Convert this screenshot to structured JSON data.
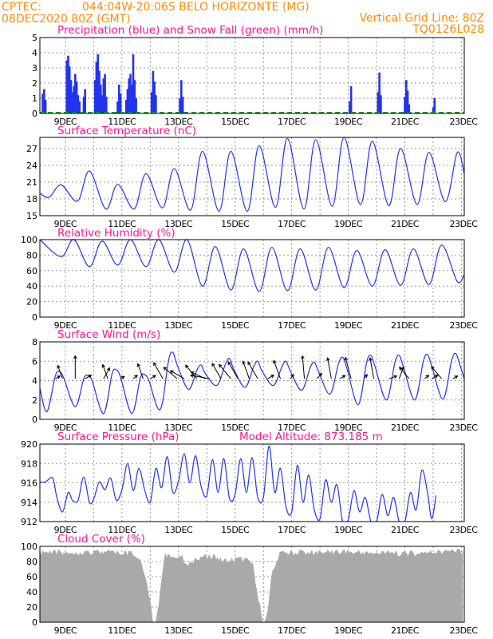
{
  "header": {
    "source": "CPTEC:",
    "location": "044:04W-20:06S  BELO HORIZONTE (MG)",
    "run": "08DEC2020 80Z (GMT)",
    "grid_note": "Vertical Grid Line: 80Z",
    "model": "TQ0126L028"
  },
  "days": [
    "9DEC",
    "11DEC",
    "13DEC",
    "15DEC",
    "17DEC",
    "19DEC",
    "21DEC",
    "23DEC"
  ],
  "colors": {
    "header": "#ff8c00",
    "title": "#ff1493",
    "line": "#2233ee",
    "snow": "#00aa00",
    "cloud": "#a9a9a9"
  },
  "chart_data": [
    {
      "type": "bar",
      "title": "Precipitation (blue) and Snow Fall (green) (mm/h)",
      "ylim": [
        0,
        5
      ],
      "yticks": [
        0,
        1,
        2,
        3,
        4,
        5
      ],
      "x_unit": "days since 08DEC2020",
      "events": [
        {
          "t": 0.1,
          "v": 1.3
        },
        {
          "t": 0.15,
          "v": 1.6
        },
        {
          "t": 0.2,
          "v": 0.9
        },
        {
          "t": 0.95,
          "v": 3.5
        },
        {
          "t": 1.0,
          "v": 3.8
        },
        {
          "t": 1.05,
          "v": 3.1
        },
        {
          "t": 1.1,
          "v": 2.2
        },
        {
          "t": 1.15,
          "v": 1.4
        },
        {
          "t": 1.2,
          "v": 1.8
        },
        {
          "t": 1.25,
          "v": 2.6
        },
        {
          "t": 1.3,
          "v": 2.1
        },
        {
          "t": 1.35,
          "v": 1.2
        },
        {
          "t": 1.4,
          "v": 0.8
        },
        {
          "t": 1.55,
          "v": 1.1
        },
        {
          "t": 1.6,
          "v": 1.6
        },
        {
          "t": 1.95,
          "v": 2.2
        },
        {
          "t": 2.0,
          "v": 3.4
        },
        {
          "t": 2.05,
          "v": 3.9
        },
        {
          "t": 2.1,
          "v": 2.8
        },
        {
          "t": 2.15,
          "v": 1.9
        },
        {
          "t": 2.2,
          "v": 1.2
        },
        {
          "t": 2.25,
          "v": 2.3
        },
        {
          "t": 2.3,
          "v": 2.6
        },
        {
          "t": 2.35,
          "v": 1.1
        },
        {
          "t": 2.75,
          "v": 0.8
        },
        {
          "t": 2.8,
          "v": 1.9
        },
        {
          "t": 2.85,
          "v": 1.3
        },
        {
          "t": 3.05,
          "v": 0.9
        },
        {
          "t": 3.1,
          "v": 1.6
        },
        {
          "t": 3.15,
          "v": 2.3
        },
        {
          "t": 3.2,
          "v": 2.6
        },
        {
          "t": 3.25,
          "v": 1.9
        },
        {
          "t": 3.3,
          "v": 3.9
        },
        {
          "t": 3.35,
          "v": 2.2
        },
        {
          "t": 3.4,
          "v": 1.0
        },
        {
          "t": 3.95,
          "v": 1.4
        },
        {
          "t": 4.0,
          "v": 2.8
        },
        {
          "t": 4.05,
          "v": 2.1
        },
        {
          "t": 4.1,
          "v": 1.2
        },
        {
          "t": 4.95,
          "v": 1.0
        },
        {
          "t": 5.0,
          "v": 2.2
        },
        {
          "t": 5.05,
          "v": 1.1
        },
        {
          "t": 10.95,
          "v": 0.8
        },
        {
          "t": 11.0,
          "v": 1.8
        },
        {
          "t": 11.95,
          "v": 1.4
        },
        {
          "t": 12.0,
          "v": 2.7
        },
        {
          "t": 12.05,
          "v": 1.2
        },
        {
          "t": 12.9,
          "v": 1.1
        },
        {
          "t": 12.95,
          "v": 2.2
        },
        {
          "t": 13.0,
          "v": 1.5
        },
        {
          "t": 13.05,
          "v": 0.6
        },
        {
          "t": 13.9,
          "v": 0.4
        },
        {
          "t": 13.95,
          "v": 1.0
        }
      ]
    },
    {
      "type": "line",
      "title": "Surface Temperature (nC)",
      "ylim": [
        15,
        29
      ],
      "yticks": [
        15,
        18,
        21,
        24,
        27
      ],
      "x_unit": "days since 08DEC2020",
      "tmin": [
        18.3,
        17.6,
        16.2,
        16.2,
        16.4,
        16.0,
        15.8,
        15.8,
        16.5,
        16.2,
        16.7,
        17.0,
        16.8,
        17.0,
        17.5
      ],
      "tmax": [
        20.5,
        23.0,
        20.6,
        22.5,
        23.4,
        26.5,
        26.5,
        27.5,
        28.8,
        28.6,
        29.0,
        28.3,
        27.0,
        26.3,
        26.3
      ],
      "tmax_hour": 0.75,
      "tmin_hour": 0.33
    },
    {
      "type": "line",
      "title": "Relative Humidity (%)",
      "ylim": [
        0,
        100
      ],
      "yticks": [
        0,
        20,
        40,
        60,
        80,
        100
      ],
      "x_unit": "days since 08DEC2020",
      "hmax": [
        100,
        100,
        98,
        100,
        100,
        100,
        91,
        88,
        90,
        88,
        90,
        86,
        87,
        88,
        93,
        98
      ],
      "hmin": [
        78,
        65,
        67,
        65,
        58,
        40,
        35,
        33,
        34,
        35,
        38,
        40,
        41,
        42,
        46,
        38
      ]
    },
    {
      "type": "line",
      "title": "Surface Wind (m/s)",
      "ylim": [
        0,
        8
      ],
      "yticks": [
        0,
        2,
        4,
        6,
        8
      ],
      "x_unit": "days since 08DEC2020",
      "wmax": [
        4.9,
        4.5,
        5.1,
        4.6,
        6.9,
        5.6,
        6.3,
        6.0,
        6.0,
        5.9,
        6.4,
        6.6,
        6.6,
        6.7,
        6.8,
        5.0
      ],
      "wmin": [
        0.8,
        1.3,
        0.6,
        0.6,
        1.0,
        3.1,
        3.5,
        3.3,
        3.5,
        3.0,
        2.6,
        1.5,
        2.0,
        2.0,
        2.1,
        3.6
      ],
      "arrows": [
        {
          "t": 0.55,
          "dir": 300,
          "len": 0.6
        },
        {
          "t": 0.8,
          "dir": 20,
          "len": 1.6
        },
        {
          "t": 1.25,
          "dir": 0,
          "len": 2.6
        },
        {
          "t": 1.6,
          "dir": 300,
          "len": 0.8
        },
        {
          "t": 2.25,
          "dir": 330,
          "len": 1.4
        },
        {
          "t": 2.4,
          "dir": 20,
          "len": 1.7
        },
        {
          "t": 2.85,
          "dir": 300,
          "len": 0.5
        },
        {
          "t": 3.3,
          "dir": 310,
          "len": 0.6
        },
        {
          "t": 3.65,
          "dir": 20,
          "len": 1.8
        },
        {
          "t": 3.9,
          "dir": 300,
          "len": 0.7
        },
        {
          "t": 4.35,
          "dir": 30,
          "len": 2.1
        },
        {
          "t": 4.85,
          "dir": 50,
          "len": 2.0
        },
        {
          "t": 5.1,
          "dir": 60,
          "len": 1.8
        },
        {
          "t": 5.55,
          "dir": 40,
          "len": 2.0
        },
        {
          "t": 5.85,
          "dir": 65,
          "len": 1.8
        },
        {
          "t": 6.0,
          "dir": 80,
          "len": 2.2
        },
        {
          "t": 6.4,
          "dir": 30,
          "len": 2.0
        },
        {
          "t": 6.75,
          "dir": 40,
          "len": 2.1
        },
        {
          "t": 7.0,
          "dir": 30,
          "len": 2.2
        },
        {
          "t": 7.4,
          "dir": 20,
          "len": 2.1
        },
        {
          "t": 7.7,
          "dir": 30,
          "len": 2.2
        },
        {
          "t": 8.05,
          "dir": 300,
          "len": 0.8
        },
        {
          "t": 8.5,
          "dir": 20,
          "len": 2.2
        },
        {
          "t": 8.85,
          "dir": 320,
          "len": 0.6
        },
        {
          "t": 9.35,
          "dir": 5,
          "len": 2.6
        },
        {
          "t": 9.8,
          "dir": 320,
          "len": 0.8
        },
        {
          "t": 10.3,
          "dir": 10,
          "len": 2.4
        },
        {
          "t": 10.6,
          "dir": 300,
          "len": 0.7
        },
        {
          "t": 11.0,
          "dir": 15,
          "len": 2.5
        },
        {
          "t": 11.45,
          "dir": 320,
          "len": 0.6
        },
        {
          "t": 11.8,
          "dir": 10,
          "len": 2.4
        },
        {
          "t": 12.35,
          "dir": 290,
          "len": 0.9
        },
        {
          "t": 12.7,
          "dir": 340,
          "len": 1.4
        },
        {
          "t": 13.05,
          "dir": 40,
          "len": 1.7
        },
        {
          "t": 13.6,
          "dir": 310,
          "len": 0.6
        },
        {
          "t": 13.85,
          "dir": 300,
          "len": 0.8
        },
        {
          "t": 14.2,
          "dir": 40,
          "len": 1.8
        },
        {
          "t": 14.6,
          "dir": 300,
          "len": 0.6
        }
      ]
    },
    {
      "type": "line",
      "title": "Surface Pressure (hPa)",
      "annotation": "Model Altitude: 873.185 m",
      "ylim": [
        912,
        920
      ],
      "yticks": [
        912,
        914,
        916,
        918,
        920
      ],
      "x_unit": "days since 08DEC2020",
      "p": [
        [
          0,
          916.1
        ],
        [
          0.2,
          916.1
        ],
        [
          0.45,
          916.5
        ],
        [
          0.6,
          914.5
        ],
        [
          0.8,
          913.0
        ],
        [
          1.0,
          915.0
        ],
        [
          1.15,
          914.2
        ],
        [
          1.35,
          914.2
        ],
        [
          1.55,
          916.6
        ],
        [
          1.75,
          914.0
        ],
        [
          1.9,
          914.3
        ],
        [
          2.1,
          916.1
        ],
        [
          2.3,
          915.3
        ],
        [
          2.5,
          916.5
        ],
        [
          2.7,
          914.2
        ],
        [
          2.9,
          915.3
        ],
        [
          3.1,
          918.0
        ],
        [
          3.3,
          915.2
        ],
        [
          3.5,
          917.5
        ],
        [
          3.7,
          915.3
        ],
        [
          3.9,
          914.0
        ],
        [
          4.1,
          917.5
        ],
        [
          4.3,
          915.5
        ],
        [
          4.5,
          918.7
        ],
        [
          4.7,
          915.0
        ],
        [
          4.9,
          916.2
        ],
        [
          5.1,
          919.0
        ],
        [
          5.3,
          916.0
        ],
        [
          5.5,
          918.8
        ],
        [
          5.7,
          915.6
        ],
        [
          5.9,
          914.7
        ],
        [
          6.1,
          918.4
        ],
        [
          6.3,
          915.0
        ],
        [
          6.5,
          918.5
        ],
        [
          6.7,
          914.4
        ],
        [
          6.9,
          914.8
        ],
        [
          7.1,
          918.5
        ],
        [
          7.3,
          915.0
        ],
        [
          7.5,
          918.6
        ],
        [
          7.7,
          914.5
        ],
        [
          7.9,
          914.5
        ],
        [
          8.1,
          919.8
        ],
        [
          8.3,
          915.0
        ],
        [
          8.5,
          917.5
        ],
        [
          8.7,
          913.5
        ],
        [
          8.9,
          913.0
        ],
        [
          9.1,
          917.8
        ],
        [
          9.3,
          914.0
        ],
        [
          9.5,
          916.8
        ],
        [
          9.7,
          913.2
        ],
        [
          9.9,
          912.3
        ],
        [
          10.1,
          916.3
        ],
        [
          10.3,
          914.0
        ],
        [
          10.5,
          915.8
        ],
        [
          10.7,
          912.0
        ],
        [
          10.9,
          912.2
        ],
        [
          11.1,
          915.2
        ],
        [
          11.3,
          913.0
        ],
        [
          11.5,
          914.5
        ],
        [
          11.7,
          912.0
        ],
        [
          11.9,
          912.0
        ],
        [
          12.1,
          914.8
        ],
        [
          12.3,
          912.6
        ],
        [
          12.5,
          914.5
        ],
        [
          12.7,
          912.0
        ],
        [
          12.9,
          912.0
        ],
        [
          13.1,
          915.0
        ],
        [
          13.3,
          913.2
        ],
        [
          13.5,
          917.3
        ],
        [
          13.7,
          915.0
        ],
        [
          13.85,
          912.3
        ],
        [
          14.0,
          914.7
        ]
      ]
    },
    {
      "type": "area",
      "title": "Cloud Cover (%)",
      "ylim": [
        0,
        100
      ],
      "yticks": [
        0,
        20,
        40,
        60,
        80,
        100
      ],
      "x_unit": "days since 08DEC2020",
      "c": [
        [
          0,
          96
        ],
        [
          1.0,
          96
        ],
        [
          2.0,
          97
        ],
        [
          3.3,
          94
        ],
        [
          3.6,
          85
        ],
        [
          3.75,
          60
        ],
        [
          3.9,
          30
        ],
        [
          4.0,
          5
        ],
        [
          4.05,
          0
        ],
        [
          4.2,
          30
        ],
        [
          4.4,
          92
        ],
        [
          5.0,
          92
        ],
        [
          5.2,
          80
        ],
        [
          5.6,
          90
        ],
        [
          6.0,
          92
        ],
        [
          6.5,
          85
        ],
        [
          7.0,
          88
        ],
        [
          7.5,
          84
        ],
        [
          7.7,
          40
        ],
        [
          7.85,
          10
        ],
        [
          7.95,
          0
        ],
        [
          8.05,
          20
        ],
        [
          8.2,
          70
        ],
        [
          8.5,
          95
        ],
        [
          9.5,
          96
        ],
        [
          10.5,
          97
        ],
        [
          11.5,
          96
        ],
        [
          12.5,
          95
        ],
        [
          13.5,
          95
        ],
        [
          14.0,
          97
        ]
      ]
    }
  ]
}
